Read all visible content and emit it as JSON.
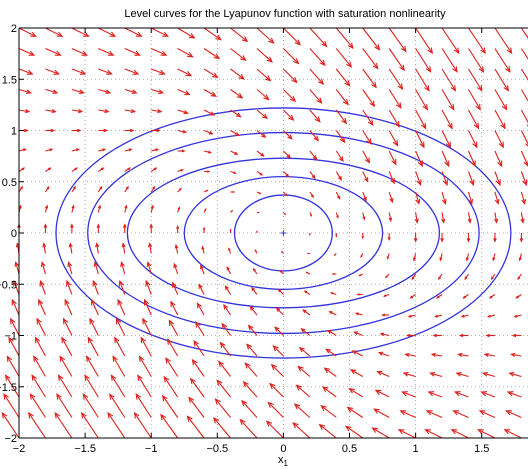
{
  "chart_data": {
    "type": "vector-field",
    "title": "Level curves for the Lyapunov function with saturation nonlinearity",
    "xlabel": "x",
    "xlabel_subscript": "1",
    "ylabel": "",
    "xlim": [
      -2,
      1.85
    ],
    "ylim": [
      -2,
      2
    ],
    "xticks": [
      -2,
      -1.5,
      -1,
      -0.5,
      0,
      0.5,
      1,
      1.5
    ],
    "xtick_labels": [
      "−2",
      "−1.5",
      "−1",
      "−0.5",
      "0",
      "0.5",
      "1",
      "1.5"
    ],
    "yticks": [
      -2,
      -1.5,
      -1,
      -0.5,
      0,
      0.5,
      1,
      1.5,
      2
    ],
    "ytick_labels": [
      "−2",
      "−1.5",
      "−1",
      "−0.5",
      "0",
      "0.5",
      "1",
      "1.5",
      "2"
    ],
    "grid": true,
    "equilibrium": [
      0,
      0
    ],
    "level_curves": [
      {
        "rx": 0.37,
        "ry": 0.37
      },
      {
        "rx": 0.75,
        "ry": 0.55
      },
      {
        "rx": 1.18,
        "ry": 0.73
      },
      {
        "rx": 1.48,
        "ry": 0.98
      },
      {
        "rx": 1.72,
        "ry": 1.22
      }
    ],
    "vector_field": {
      "x_range": [
        -2,
        2
      ],
      "y_range": [
        -2,
        2
      ],
      "step": 0.2,
      "description": "dx1 = x2, dx2 = -sat(x1) - x2 (arrows scaled)"
    },
    "colors": {
      "curves": "#3333dd",
      "arrows": "#e0201b",
      "grid": "#999999",
      "axes": "#000000"
    }
  }
}
